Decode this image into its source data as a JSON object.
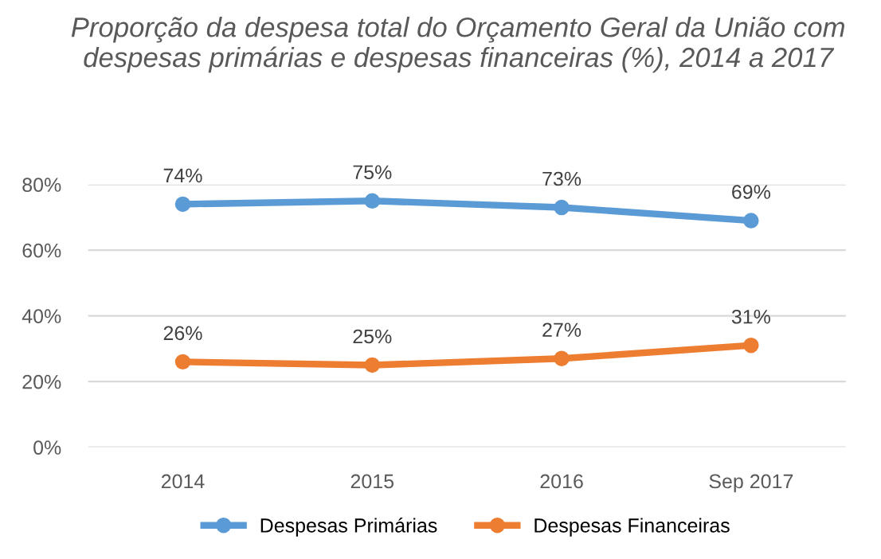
{
  "chart_data": {
    "type": "line",
    "title": "Proporção da despesa total do Orçamento Geral da União com despesas primárias e despesas financeiras (%), 2014 a 2017",
    "categories": [
      "2014",
      "2015",
      "2016",
      "Sep 2017"
    ],
    "series": [
      {
        "name": "Despesas Primárias",
        "color": "#5b9bd5",
        "values": [
          74,
          75,
          73,
          69
        ],
        "value_labels": [
          "74%",
          "75%",
          "73%",
          "69%"
        ]
      },
      {
        "name": "Despesas Financeiras",
        "color": "#ed7d31",
        "values": [
          26,
          25,
          27,
          31
        ],
        "value_labels": [
          "26%",
          "25%",
          "27%",
          "31%"
        ]
      }
    ],
    "ylim": [
      0,
      80
    ],
    "yticks": [
      {
        "value": 0,
        "label": "0%"
      },
      {
        "value": 20,
        "label": "20%"
      },
      {
        "value": 40,
        "label": "40%"
      },
      {
        "value": 60,
        "label": "60%"
      },
      {
        "value": 80,
        "label": "80%"
      }
    ],
    "grid": "y",
    "legend": "bottom",
    "marker": "circle",
    "line_style": "solid"
  }
}
